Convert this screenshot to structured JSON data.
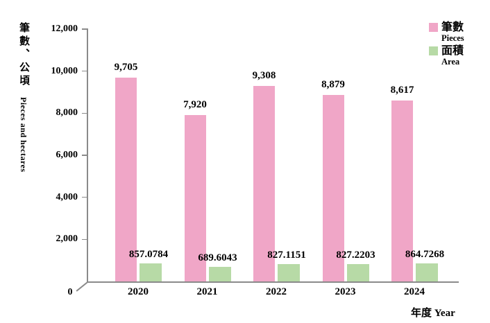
{
  "chart_data": {
    "type": "bar",
    "title": "",
    "categories": [
      "2020",
      "2021",
      "2022",
      "2023",
      "2024"
    ],
    "series": [
      {
        "name": "筆數",
        "name_en": "Pieces",
        "color": "#F0A6C7",
        "values": [
          9705,
          7920,
          9308,
          8879,
          8617
        ],
        "data_labels": [
          "9,705",
          "7,920",
          "9,308",
          "8,879",
          "8,617"
        ]
      },
      {
        "name": "面積",
        "name_en": "Area",
        "color": "#B7DAA6",
        "values": [
          857.0784,
          689.6043,
          827.1151,
          827.2203,
          864.7268
        ],
        "data_labels": [
          "857.0784",
          "689.6043",
          "827.1151",
          "827.2203",
          "864.7268"
        ]
      }
    ],
    "ylabel_zh": "筆數、公頃",
    "ylabel_en": "Pieces and hectares",
    "xlabel": "年度 Year",
    "origin_label": "0",
    "ylim": [
      0,
      12000
    ],
    "yticks": [
      2000,
      4000,
      6000,
      8000,
      10000,
      12000
    ],
    "ytick_labels": [
      "2,000",
      "4,000",
      "6,000",
      "8,000",
      "10,000",
      "12,000"
    ],
    "grid": false,
    "legend_position": "top-right",
    "axis_color": "#8a8a8a"
  }
}
